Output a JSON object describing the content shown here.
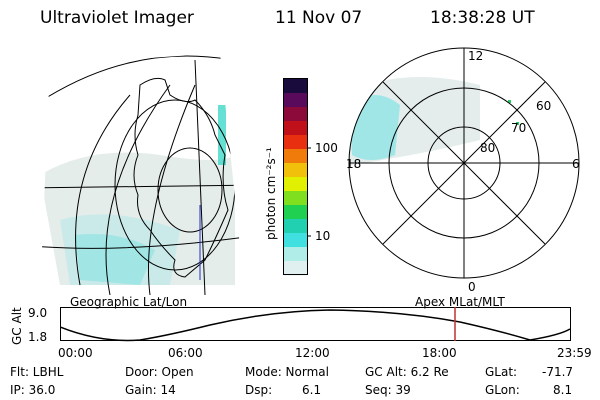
{
  "header": {
    "title": "Ultraviolet Imager",
    "date": "11 Nov 07",
    "time": "18:38:28 UT"
  },
  "colorbar": {
    "unit_label": "photon cm⁻²s⁻¹",
    "ticks": [
      "100",
      "10"
    ],
    "colors": [
      "#1a0b3d",
      "#5a0a5a",
      "#8b0a3a",
      "#c0101a",
      "#e83010",
      "#f07a0a",
      "#f0c00a",
      "#e0f000",
      "#80e020",
      "#20d050",
      "#20d0b0",
      "#40e0e0",
      "#b0ece8",
      "#e0f0f0"
    ]
  },
  "geo_map": {
    "label": "Geographic Lat/Lon"
  },
  "polar_map": {
    "label": "Apex MLat/MLT",
    "mlt_labels": [
      "12",
      "18",
      "6",
      "0"
    ],
    "mlat_labels": [
      "60",
      "70",
      "80"
    ]
  },
  "altitude_plot": {
    "axis_label": "GC Alt",
    "y_ticks": [
      "9.0",
      "1.8"
    ],
    "x_ticks": [
      "00:00",
      "06:00",
      "12:00",
      "18:00",
      "23:59"
    ],
    "marker_time": "18:38",
    "marker_color": "#c03030"
  },
  "footer": {
    "filter": "Flt: LBHL",
    "ip": "IP: 36.0",
    "door": "Door: Open",
    "gain": "Gain: 14",
    "mode": "Mode: Normal",
    "dsp_label": "Dsp:",
    "dsp_value": "6.1",
    "gc_alt": "GC Alt: 6.2 Re",
    "seq": "Seq: 39",
    "glat_label": "GLat:",
    "glat_value": "-71.7",
    "glon_label": "GLon:",
    "glon_value": "8.1"
  }
}
